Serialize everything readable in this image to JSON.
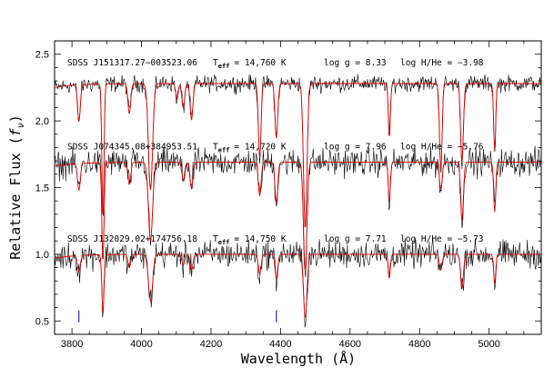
{
  "chart_data": {
    "type": "line",
    "xlabel": "Wavelength (Å)",
    "ylabel": "Relative Flux (f_ν)",
    "ylabel_main": "Relative Flux (",
    "ylabel_f": "f",
    "ylabel_sub": "ν",
    "ylabel_close": ")",
    "xlim": [
      3750,
      5150
    ],
    "ylim": [
      0.4,
      2.6
    ],
    "x_ticks": [
      3800,
      4000,
      4200,
      4400,
      4600,
      4800,
      5000
    ],
    "y_ticks": [
      0.5,
      1.0,
      1.5,
      2.0,
      2.5
    ],
    "x_tick_labels": [
      "3800",
      "4000",
      "4200",
      "4400",
      "4600",
      "4800",
      "5000"
    ],
    "y_tick_labels": [
      "0.5",
      "1.0",
      "1.5",
      "2.0",
      "2.5"
    ],
    "line_markers": [
      3820,
      4388
    ],
    "absorption_lines": [
      {
        "w": 3820,
        "d": 0.12,
        "s": 4
      },
      {
        "w": 3889,
        "d": 0.45,
        "s": 3
      },
      {
        "w": 3965,
        "d": 0.1,
        "s": 4
      },
      {
        "w": 4026,
        "d": 0.35,
        "s": 6
      },
      {
        "w": 4120,
        "d": 0.08,
        "s": 4
      },
      {
        "w": 4144,
        "d": 0.12,
        "s": 4
      },
      {
        "w": 4340,
        "d": 0.15,
        "s": 4
      },
      {
        "w": 4388,
        "d": 0.18,
        "s": 4
      },
      {
        "w": 4471,
        "d": 0.48,
        "s": 5
      },
      {
        "w": 4713,
        "d": 0.18,
        "s": 3
      },
      {
        "w": 4861,
        "d": 0.12,
        "s": 4
      },
      {
        "w": 4922,
        "d": 0.26,
        "s": 4
      },
      {
        "w": 5016,
        "d": 0.22,
        "s": 3
      }
    ],
    "series": [
      {
        "label_name": "SDSS J151317.27−003523.06",
        "label_teff": "= 14,760 K",
        "label_logg": "log g = 8.33",
        "label_hhe": "log H/He = −3.98",
        "continuum": 2.28,
        "noise": 0.03,
        "h_lines": {
          "4340": 0.22,
          "4861": 0.38,
          "4102": 0.12
        }
      },
      {
        "label_name": "SDSS J074345.08+384953.51",
        "label_teff": "= 14,720 K",
        "label_logg": "log g = 7.96",
        "label_hhe": "log H/He = −5.76",
        "continuum": 1.69,
        "noise": 0.05,
        "h_lines": {}
      },
      {
        "label_name": "SDSS J132029.02+174756.18",
        "label_teff": "= 14,750 K",
        "label_logg": "log g = 7.71",
        "label_hhe": "log H/He = −5.73",
        "continuum": 1.0,
        "noise": 0.05,
        "h_lines": {}
      }
    ],
    "teff_symbol": "T",
    "teff_sub": "eff"
  }
}
